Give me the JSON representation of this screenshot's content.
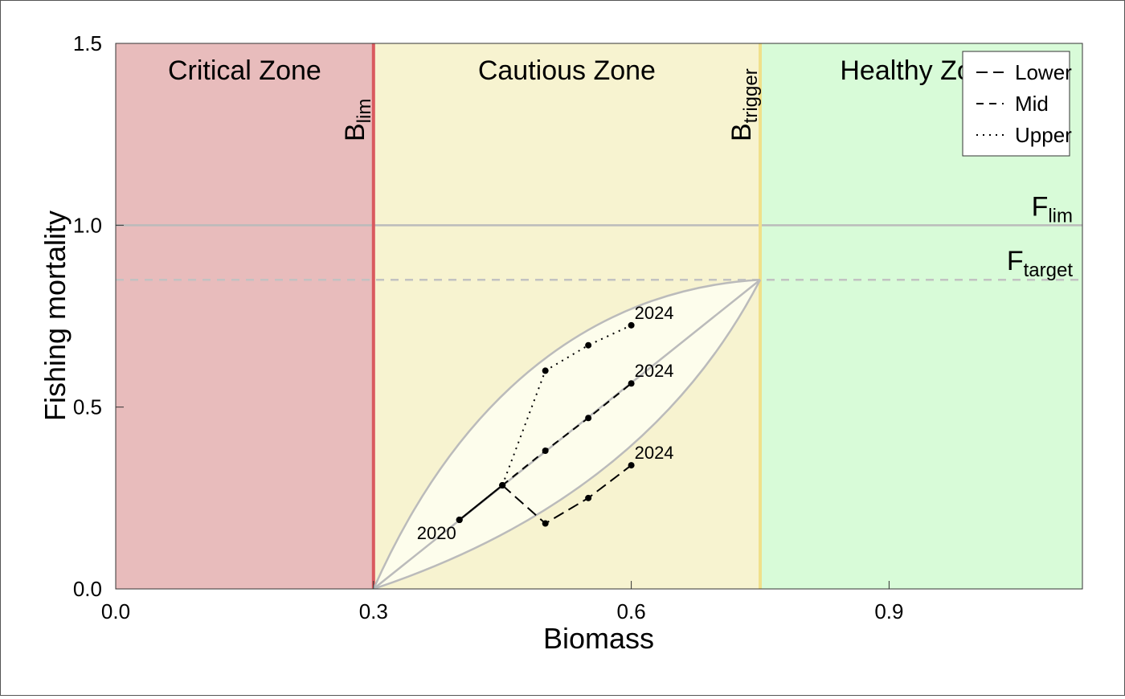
{
  "chart_data": {
    "type": "line",
    "xlabel": "Biomass",
    "ylabel": "Fishing mortality",
    "xlim": [
      0,
      1.125
    ],
    "ylim": [
      0,
      1.5
    ],
    "x_ticks": [
      "0.0",
      "0.3",
      "0.6",
      "0.9"
    ],
    "y_ticks": [
      "0.0",
      "0.5",
      "1.0",
      "1.5"
    ],
    "grid": false,
    "legend_position": "top-right",
    "zones": [
      {
        "name": "Critical Zone",
        "x_range": [
          0,
          0.3
        ],
        "color": "#e8bcbc"
      },
      {
        "name": "Cautious Zone",
        "x_range": [
          0.3,
          0.75
        ],
        "color": "#f7f3d0"
      },
      {
        "name": "Healthy Zone",
        "x_range": [
          0.75,
          1.125
        ],
        "color": "#d8fbd8"
      }
    ],
    "reference_lines": {
      "blim": {
        "main": "B",
        "sub": "lim",
        "x": 0.3,
        "color": "#d9595e"
      },
      "btrigger": {
        "main": "B",
        "sub": "trigger",
        "x": 0.75,
        "color": "#f0e08a"
      },
      "flim": {
        "main": "F",
        "sub": "lim",
        "y": 1.0,
        "color": "#bbbbbb"
      },
      "ftarget": {
        "main": "F",
        "sub": "target",
        "y": 0.85,
        "color": "#c2c2c2"
      }
    },
    "series": [
      {
        "name": "Lower",
        "dash": "long",
        "x": [
          0.4,
          0.45,
          0.5,
          0.55,
          0.6
        ],
        "y": [
          0.19,
          0.285,
          0.18,
          0.25,
          0.34
        ]
      },
      {
        "name": "Mid",
        "dash": "short",
        "x": [
          0.4,
          0.45,
          0.5,
          0.55,
          0.6
        ],
        "y": [
          0.19,
          0.285,
          0.38,
          0.47,
          0.565
        ]
      },
      {
        "name": "Upper",
        "dash": "dot",
        "x": [
          0.4,
          0.45,
          0.5,
          0.55,
          0.6
        ],
        "y": [
          0.19,
          0.285,
          0.6,
          0.67,
          0.725
        ]
      }
    ],
    "point_labels": [
      {
        "text": "2020",
        "x": 0.4,
        "y": 0.19
      },
      {
        "text": "2024",
        "x": 0.6,
        "y": 0.725
      },
      {
        "text": "2024",
        "x": 0.6,
        "y": 0.565
      },
      {
        "text": "2024",
        "x": 0.6,
        "y": 0.34
      }
    ]
  }
}
